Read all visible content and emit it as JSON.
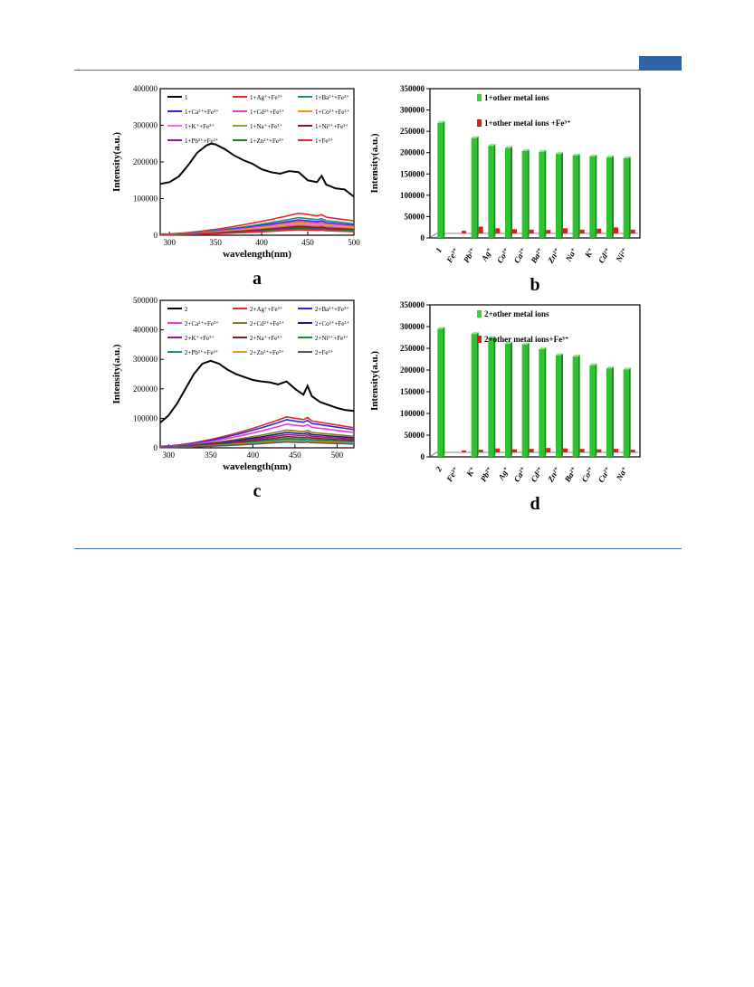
{
  "colors": {
    "header_rule": "#3d6ea6",
    "header_tab": "#2f63a6"
  },
  "panels": [
    {
      "label": "a",
      "chart_data": {
        "type": "line",
        "xlabel": "wavelength(nm)",
        "ylabel": "Intensity(a.u.)",
        "xlim": [
          290,
          500
        ],
        "ylim": [
          0,
          400000
        ],
        "xticks": [
          300,
          350,
          400,
          450,
          500
        ],
        "yticks": [
          0,
          100000,
          200000,
          300000,
          400000
        ],
        "ytick_labels": [
          "0",
          "100000",
          "200000",
          "300000",
          "400000"
        ],
        "legend": [
          {
            "name": "1",
            "color": "#000000"
          },
          {
            "name": "1+Ag⁺+Fe³⁺",
            "color": "#e8262e"
          },
          {
            "name": "1+Ba²⁺+Fe³⁺",
            "color": "#1a8a8a"
          },
          {
            "name": "1+Ca²⁺+Fe³⁺",
            "color": "#2b2bd8"
          },
          {
            "name": "1+Cd²⁺+Fe³⁺",
            "color": "#e33bd0"
          },
          {
            "name": "1+Co²⁺+Fe³⁺",
            "color": "#f0941c"
          },
          {
            "name": "1+K⁺+Fe³⁺",
            "color": "#f070e0"
          },
          {
            "name": "1+Na⁺+Fe³⁺",
            "color": "#9c9c2a"
          },
          {
            "name": "1+Ni²⁺+Fe³⁺",
            "color": "#8c1c1c"
          },
          {
            "name": "1+Pb²⁺+Fe³⁺",
            "color": "#8c1c8c"
          },
          {
            "name": "1+Zn²⁺+Fe³⁺",
            "color": "#1c7c2c"
          },
          {
            "name": "1+Fe³⁺",
            "color": "#e8262e"
          }
        ],
        "main_series": {
          "x": [
            290,
            300,
            310,
            320,
            330,
            340,
            345,
            350,
            360,
            370,
            380,
            390,
            400,
            410,
            420,
            430,
            440,
            450,
            460,
            465,
            470,
            480,
            490,
            500
          ],
          "y": [
            140000,
            145000,
            160000,
            190000,
            225000,
            245000,
            250000,
            248000,
            235000,
            218000,
            205000,
            195000,
            180000,
            172000,
            168000,
            175000,
            172000,
            150000,
            145000,
            162000,
            138000,
            128000,
            125000,
            105000
          ]
        },
        "quenched_peaks": [
          60000,
          48000,
          42000,
          38000,
          34000,
          30000,
          27000,
          24000,
          21000,
          18000,
          15000
        ]
      }
    },
    {
      "label": "b",
      "chart_data": {
        "type": "bar",
        "ylabel": "Intensity(a.u.)",
        "ylim": [
          0,
          350000
        ],
        "yticks": [
          0,
          50000,
          100000,
          150000,
          200000,
          250000,
          300000,
          350000
        ],
        "categories": [
          "1",
          "Fe³⁺",
          "Pb²⁺",
          "Ag⁺",
          "Co²⁺",
          "Ca²⁺",
          "Ba²⁺",
          "Zn²⁺",
          "Na⁺",
          "K⁺",
          "Cd²⁺",
          "Ni²⁺"
        ],
        "series": [
          {
            "name": "1+other metal ions",
            "color": "#3ad23a",
            "values": [
              270000,
              null,
              234000,
              216000,
              211000,
              204000,
              202000,
              197000,
              193000,
              191000,
              189000,
              187000
            ]
          },
          {
            "name": "1+other metal ions +Fe³⁺",
            "color": "#e81818",
            "values": [
              null,
              6000,
              16000,
              12000,
              10000,
              9000,
              8000,
              12000,
              9000,
              11000,
              14000,
              9000
            ]
          }
        ]
      }
    },
    {
      "label": "c",
      "chart_data": {
        "type": "line",
        "xlabel": "wavelength(nm)",
        "ylabel": "Intensity(a.u.)",
        "xlim": [
          290,
          520
        ],
        "ylim": [
          0,
          500000
        ],
        "xticks": [
          300,
          350,
          400,
          450,
          500
        ],
        "yticks": [
          0,
          100000,
          200000,
          300000,
          400000,
          500000
        ],
        "ytick_labels": [
          "0",
          "100000",
          "200000",
          "300000",
          "400000",
          "500000"
        ],
        "legend": [
          {
            "name": "2",
            "color": "#000000"
          },
          {
            "name": "2+Ag⁺+Fe³⁺",
            "color": "#e8262e"
          },
          {
            "name": "2+Ba²⁺+Fe³⁺",
            "color": "#2b2bd8"
          },
          {
            "name": "2+Ca²⁺+Fe³⁺",
            "color": "#e33bd0"
          },
          {
            "name": "2+Cd²⁺+Fe³⁺",
            "color": "#8a7a1c"
          },
          {
            "name": "2+Co²⁺+Fe³⁺",
            "color": "#1c1c7c"
          },
          {
            "name": "2+K⁺+Fe³⁺",
            "color": "#8c1c8c"
          },
          {
            "name": "2+Na⁺+Fe³⁺",
            "color": "#8c1c1c"
          },
          {
            "name": "2+Ni²⁺+Fe³⁺",
            "color": "#1c8c2c"
          },
          {
            "name": "2+Pb²⁺+Fe³⁺",
            "color": "#1a8a8a"
          },
          {
            "name": "2+Zn²⁺+Fe³⁺",
            "color": "#f0941c"
          },
          {
            "name": "2+Fe³⁺",
            "color": "#555555"
          }
        ],
        "main_series": {
          "x": [
            290,
            300,
            310,
            320,
            330,
            340,
            350,
            360,
            370,
            380,
            390,
            400,
            410,
            420,
            430,
            440,
            450,
            460,
            465,
            470,
            480,
            490,
            500,
            510,
            520
          ],
          "y": [
            85000,
            110000,
            150000,
            200000,
            250000,
            285000,
            295000,
            285000,
            265000,
            250000,
            240000,
            230000,
            225000,
            222000,
            215000,
            225000,
            200000,
            180000,
            210000,
            175000,
            155000,
            145000,
            135000,
            128000,
            125000
          ]
        },
        "quenched_peaks": [
          105000,
          95000,
          80000,
          60000,
          52000,
          45000,
          38000,
          32000,
          28000,
          24000,
          20000
        ]
      }
    },
    {
      "label": "d",
      "chart_data": {
        "type": "bar",
        "ylabel": "Intensity(a.u.)",
        "ylim": [
          0,
          350000
        ],
        "yticks": [
          0,
          50000,
          100000,
          150000,
          200000,
          250000,
          300000,
          350000
        ],
        "categories": [
          "2",
          "Fe³⁺",
          "K⁺",
          "Pb²⁺",
          "Ag⁺",
          "Ca²⁺",
          "Cd²⁺",
          "Zn²⁺",
          "Ba²⁺",
          "Co²⁺",
          "Cu²⁺",
          "Na⁺"
        ],
        "series": [
          {
            "name": "2+other metal ions",
            "color": "#3ad23a",
            "values": [
              295000,
              null,
              283000,
              274000,
              261000,
              259000,
              248000,
              234000,
              231000,
              211000,
              204000,
              201000
            ]
          },
          {
            "name": "2+other metal ions+Fe³⁺",
            "color": "#e81818",
            "values": [
              null,
              4000,
              6000,
              9000,
              7000,
              8000,
              10000,
              9000,
              8000,
              7000,
              8000,
              6000
            ]
          }
        ]
      }
    }
  ]
}
